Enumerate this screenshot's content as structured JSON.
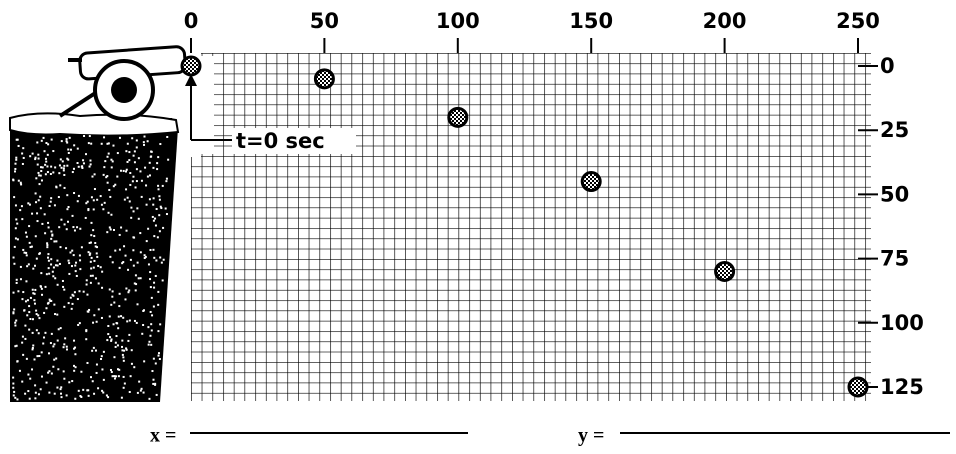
{
  "chart_data": {
    "type": "scatter",
    "x": [
      0,
      50,
      100,
      150,
      200,
      250
    ],
    "values": [
      0,
      5,
      20,
      45,
      80,
      125
    ],
    "xlim": [
      0,
      250
    ],
    "ylim": [
      0,
      125
    ],
    "y_inverted": true,
    "xticks": [
      0,
      50,
      100,
      150,
      200,
      250
    ],
    "yticks": [
      0,
      25,
      50,
      75,
      100,
      125
    ],
    "grid": true,
    "annotation": "t=0 sec",
    "x_answer_label": "x =",
    "y_answer_label": "y ="
  }
}
